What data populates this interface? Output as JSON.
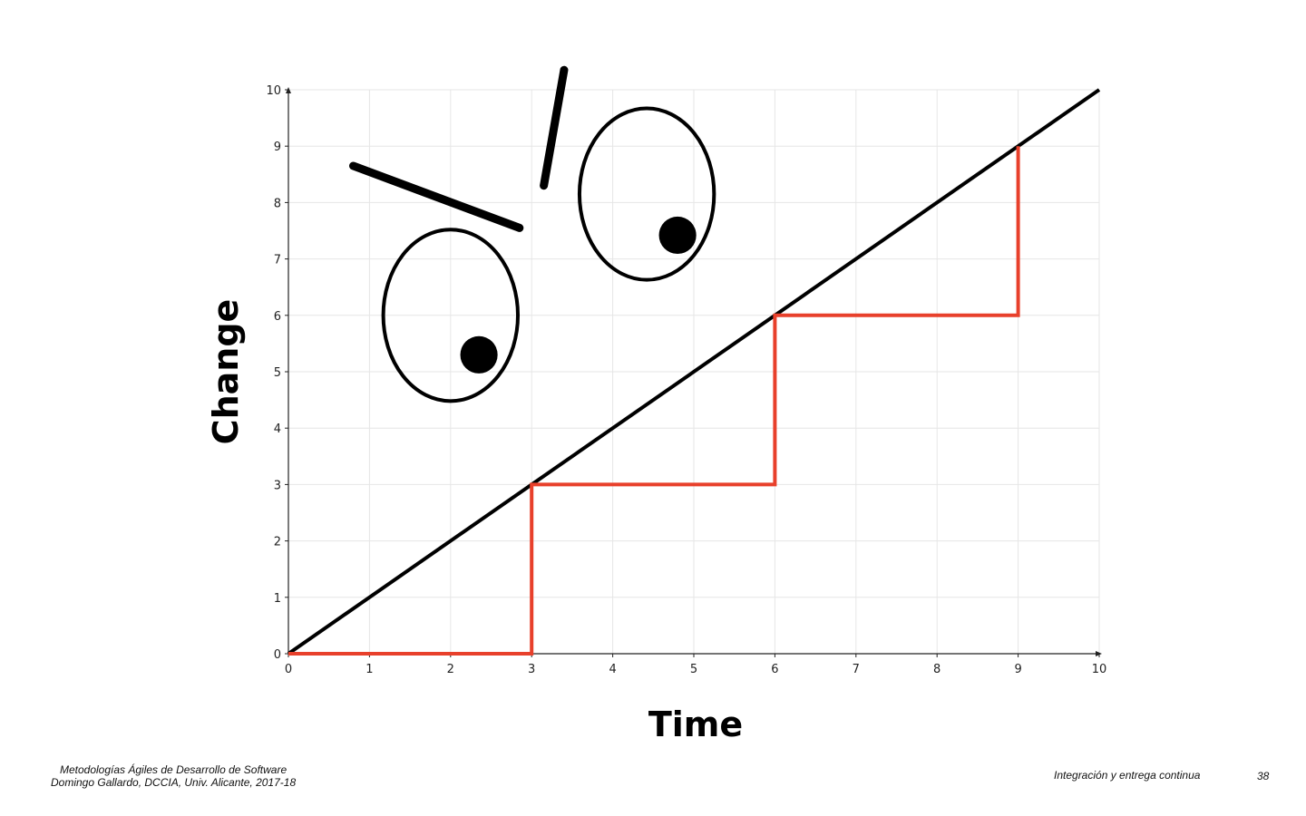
{
  "slide": {
    "footer_left_line1": "Metodologías Ágiles de Desarrollo de Software",
    "footer_left_line2": "Domingo Gallardo, DCCIA, Univ. Alicante, 2017-18",
    "footer_center": "Integración y entrega continua",
    "page_number": "38"
  },
  "chart_data": {
    "type": "line",
    "title": "",
    "xlabel": "Time",
    "ylabel": "Change",
    "xlim": [
      0,
      10
    ],
    "ylim": [
      0,
      10
    ],
    "xticks": [
      0,
      1,
      2,
      3,
      4,
      5,
      6,
      7,
      8,
      9,
      10
    ],
    "yticks": [
      0,
      1,
      2,
      3,
      4,
      5,
      6,
      7,
      8,
      9,
      10
    ],
    "grid": true,
    "legend": "none",
    "series": [
      {
        "color": "#000000",
        "x": [
          0,
          10
        ],
        "y": [
          0,
          10
        ]
      },
      {
        "color": "#e8402b",
        "step": true,
        "x": [
          0,
          3,
          3,
          6,
          6,
          9,
          9
        ],
        "y": [
          0,
          0,
          3,
          3,
          6,
          6,
          9
        ]
      }
    ],
    "decorations": {
      "face_drawing": "angry-face",
      "eyes": [
        {
          "cx": 2.0,
          "cy": 6.0,
          "rx": 0.83,
          "ry": 1.52,
          "pupil_x": 2.35,
          "pupil_y": 5.3,
          "pupil_r": 0.23
        },
        {
          "cx": 4.42,
          "cy": 8.15,
          "rx": 0.83,
          "ry": 1.52,
          "pupil_x": 4.8,
          "pupil_y": 7.42,
          "pupil_r": 0.23
        }
      ],
      "brows": [
        {
          "x1": 0.8,
          "y1": 8.65,
          "x2": 2.85,
          "y2": 7.55
        },
        {
          "x1": 3.15,
          "y1": 8.3,
          "x2": 3.4,
          "y2": 10.35
        }
      ]
    }
  }
}
